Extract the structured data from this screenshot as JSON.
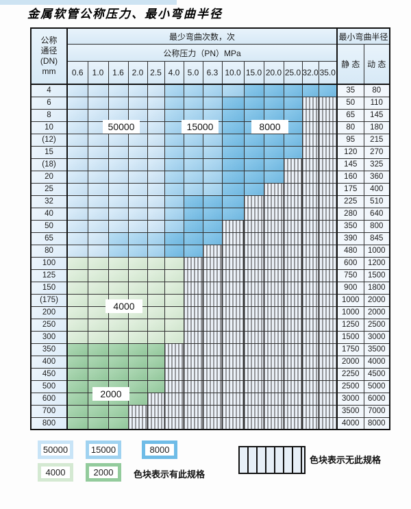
{
  "page": {
    "title": "金属软管公称压力、最小弯曲半径"
  },
  "table": {
    "dn_header_lines": [
      "公称",
      "通径",
      "(DN)",
      "mm"
    ],
    "bend_count_title": "最少弯曲次数，次",
    "pressure_title": "公称压力（PN）MPa",
    "radius_title": "最小弯曲半径",
    "static_label": "静 态",
    "dynamic_label": "动 态",
    "pressure_columns": [
      "0.6",
      "1.0",
      "1.6",
      "2.0",
      "2.5",
      "4.0",
      "5.0",
      "6.3",
      "10.0",
      "15.0",
      "20.0",
      "25.0",
      "32.0",
      "35.0"
    ],
    "zone_codes": {
      "b1": "50000",
      "b2": "15000",
      "b3": "8000",
      "g1": "4000",
      "g2": "2000",
      "h": "no-spec"
    },
    "rows": [
      {
        "dn": "4",
        "cells": [
          "b1",
          "b1",
          "b1",
          "b1",
          "b1",
          "b2",
          "b2",
          "b2",
          "b2",
          "b3",
          "b3",
          "b3",
          "b3",
          "b3"
        ],
        "static": "35",
        "dynamic": "80"
      },
      {
        "dn": "6",
        "cells": [
          "b1",
          "b1",
          "b1",
          "b1",
          "b1",
          "b2",
          "b2",
          "b2",
          "b3",
          "b3",
          "b3",
          "b3",
          "h",
          "h"
        ],
        "static": "50",
        "dynamic": "110"
      },
      {
        "dn": "8",
        "cells": [
          "b1",
          "b1",
          "b1",
          "b1",
          "b1",
          "b2",
          "b2",
          "b2",
          "b3",
          "b3",
          "b3",
          "b3",
          "h",
          "h"
        ],
        "static": "65",
        "dynamic": "145"
      },
      {
        "dn": "10",
        "cells": [
          "b1",
          "b1",
          "b1",
          "b1",
          "b1",
          "b2",
          "b2",
          "b2",
          "b3",
          "b3",
          "b3",
          "b3",
          "h",
          "h"
        ],
        "static": "80",
        "dynamic": "180"
      },
      {
        "dn": "(12)",
        "cells": [
          "b1",
          "b1",
          "b1",
          "b1",
          "b1",
          "b2",
          "b2",
          "b2",
          "b3",
          "b3",
          "b3",
          "b3",
          "h",
          "h"
        ],
        "static": "95",
        "dynamic": "215"
      },
      {
        "dn": "15",
        "cells": [
          "b1",
          "b1",
          "b1",
          "b1",
          "b1",
          "b2",
          "b2",
          "b2",
          "b3",
          "b3",
          "b3",
          "b3",
          "h",
          "h"
        ],
        "static": "120",
        "dynamic": "270"
      },
      {
        "dn": "(18)",
        "cells": [
          "b1",
          "b1",
          "b1",
          "b1",
          "b1",
          "b2",
          "b2",
          "b2",
          "b3",
          "b3",
          "b3",
          "h",
          "h",
          "h"
        ],
        "static": "145",
        "dynamic": "325"
      },
      {
        "dn": "20",
        "cells": [
          "b1",
          "b1",
          "b1",
          "b1",
          "b1",
          "b2",
          "b2",
          "b2",
          "b3",
          "b3",
          "b3",
          "h",
          "h",
          "h"
        ],
        "static": "160",
        "dynamic": "360"
      },
      {
        "dn": "25",
        "cells": [
          "b1",
          "b1",
          "b1",
          "b1",
          "b1",
          "b2",
          "b2",
          "b2",
          "b3",
          "b3",
          "h",
          "h",
          "h",
          "h"
        ],
        "static": "175",
        "dynamic": "400"
      },
      {
        "dn": "32",
        "cells": [
          "b1",
          "b1",
          "b1",
          "b1",
          "b1",
          "b2",
          "b3",
          "b3",
          "b3",
          "h",
          "h",
          "h",
          "h",
          "h"
        ],
        "static": "225",
        "dynamic": "510"
      },
      {
        "dn": "40",
        "cells": [
          "b1",
          "b1",
          "b1",
          "b1",
          "b1",
          "b2",
          "b3",
          "b3",
          "b3",
          "h",
          "h",
          "h",
          "h",
          "h"
        ],
        "static": "280",
        "dynamic": "640"
      },
      {
        "dn": "50",
        "cells": [
          "b1",
          "b1",
          "b1",
          "b1",
          "b1",
          "b2",
          "b3",
          "b3",
          "h",
          "h",
          "h",
          "h",
          "h",
          "h"
        ],
        "static": "350",
        "dynamic": "800"
      },
      {
        "dn": "65",
        "cells": [
          "b1",
          "b1",
          "b2",
          "b2",
          "b2",
          "b3",
          "b3",
          "b3",
          "h",
          "h",
          "h",
          "h",
          "h",
          "h"
        ],
        "static": "390",
        "dynamic": "845"
      },
      {
        "dn": "80",
        "cells": [
          "b1",
          "b1",
          "b2",
          "b2",
          "b2",
          "b3",
          "b3",
          "h",
          "h",
          "h",
          "h",
          "h",
          "h",
          "h"
        ],
        "static": "480",
        "dynamic": "1000"
      },
      {
        "dn": "100",
        "cells": [
          "g1",
          "g1",
          "g1",
          "g1",
          "g1",
          "g1",
          "h",
          "h",
          "h",
          "h",
          "h",
          "h",
          "h",
          "h"
        ],
        "static": "600",
        "dynamic": "1200"
      },
      {
        "dn": "125",
        "cells": [
          "g1",
          "g1",
          "g1",
          "g1",
          "g1",
          "g1",
          "h",
          "h",
          "h",
          "h",
          "h",
          "h",
          "h",
          "h"
        ],
        "static": "750",
        "dynamic": "1500"
      },
      {
        "dn": "150",
        "cells": [
          "g1",
          "g1",
          "g1",
          "g1",
          "g1",
          "g1",
          "h",
          "h",
          "h",
          "h",
          "h",
          "h",
          "h",
          "h"
        ],
        "static": "900",
        "dynamic": "1800"
      },
      {
        "dn": "(175)",
        "cells": [
          "g1",
          "g1",
          "g1",
          "g1",
          "g1",
          "g1",
          "h",
          "h",
          "h",
          "h",
          "h",
          "h",
          "h",
          "h"
        ],
        "static": "1000",
        "dynamic": "2000"
      },
      {
        "dn": "200",
        "cells": [
          "g1",
          "g1",
          "g1",
          "g1",
          "g1",
          "g1",
          "h",
          "h",
          "h",
          "h",
          "h",
          "h",
          "h",
          "h"
        ],
        "static": "1000",
        "dynamic": "2000"
      },
      {
        "dn": "250",
        "cells": [
          "g1",
          "g1",
          "g1",
          "g1",
          "g1",
          "g1",
          "h",
          "h",
          "h",
          "h",
          "h",
          "h",
          "h",
          "h"
        ],
        "static": "1250",
        "dynamic": "2500"
      },
      {
        "dn": "300",
        "cells": [
          "g1",
          "g1",
          "g1",
          "g1",
          "g1",
          "g1",
          "h",
          "h",
          "h",
          "h",
          "h",
          "h",
          "h",
          "h"
        ],
        "static": "1500",
        "dynamic": "3000"
      },
      {
        "dn": "350",
        "cells": [
          "g2",
          "g2",
          "g2",
          "g2",
          "g2",
          "h",
          "h",
          "h",
          "h",
          "h",
          "h",
          "h",
          "h",
          "h"
        ],
        "static": "1750",
        "dynamic": "3500"
      },
      {
        "dn": "400",
        "cells": [
          "g2",
          "g2",
          "g2",
          "g2",
          "g2",
          "h",
          "h",
          "h",
          "h",
          "h",
          "h",
          "h",
          "h",
          "h"
        ],
        "static": "2000",
        "dynamic": "4000"
      },
      {
        "dn": "450",
        "cells": [
          "g2",
          "g2",
          "g2",
          "g2",
          "g2",
          "h",
          "h",
          "h",
          "h",
          "h",
          "h",
          "h",
          "h",
          "h"
        ],
        "static": "2250",
        "dynamic": "4500"
      },
      {
        "dn": "500",
        "cells": [
          "g2",
          "g2",
          "g2",
          "g2",
          "g2",
          "h",
          "h",
          "h",
          "h",
          "h",
          "h",
          "h",
          "h",
          "h"
        ],
        "static": "2500",
        "dynamic": "5000"
      },
      {
        "dn": "600",
        "cells": [
          "g2",
          "g2",
          "g2",
          "g2",
          "h",
          "h",
          "h",
          "h",
          "h",
          "h",
          "h",
          "h",
          "h",
          "h"
        ],
        "static": "3000",
        "dynamic": "6000"
      },
      {
        "dn": "700",
        "cells": [
          "g2",
          "g2",
          "g2",
          "h",
          "h",
          "h",
          "h",
          "h",
          "h",
          "h",
          "h",
          "h",
          "h",
          "h"
        ],
        "static": "3500",
        "dynamic": "7000"
      },
      {
        "dn": "800",
        "cells": [
          "g2",
          "g2",
          "g2",
          "h",
          "h",
          "h",
          "h",
          "h",
          "h",
          "h",
          "h",
          "h",
          "h",
          "h"
        ],
        "static": "4000",
        "dynamic": "8000"
      }
    ],
    "zone_labels": [
      {
        "text": "50000"
      },
      {
        "text": "15000"
      },
      {
        "text": "8000"
      },
      {
        "text": "4000"
      },
      {
        "text": "2000"
      }
    ]
  },
  "legend": {
    "swatches": [
      {
        "label": "50000",
        "color": "#c8e4f7"
      },
      {
        "label": "15000",
        "color": "#9fd2f0"
      },
      {
        "label": "8000",
        "color": "#6fbce7"
      },
      {
        "label": "4000",
        "color": "#d4e9d2"
      },
      {
        "label": "2000",
        "color": "#93cb9c"
      }
    ],
    "has_spec_note": "色块表示有此规格",
    "no_spec_note": "色块表示无此规格"
  },
  "colors": {
    "zone_50000": "#cfe7f8",
    "zone_15000": "#a6d6f2",
    "zone_8000": "#77c0e8",
    "zone_4000": "#daecd6",
    "zone_2000": "#9bcfa3",
    "hatch_bg": "#edf3fa",
    "grid_line": "#2e2e2e",
    "header_bg": "#ddedf9"
  }
}
